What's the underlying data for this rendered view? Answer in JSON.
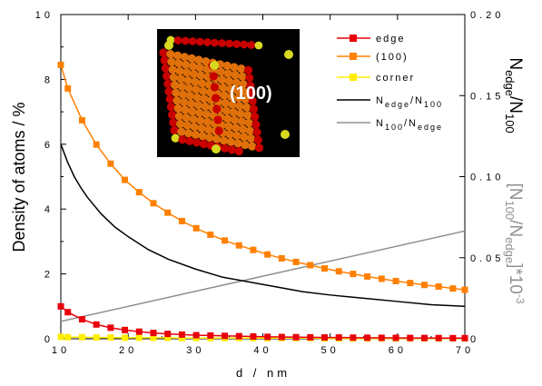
{
  "chart_data": {
    "type": "line",
    "x_axis": {
      "label": "d / nm",
      "range": [
        10,
        70
      ],
      "ticks": [
        "10",
        "20",
        "30",
        "40",
        "50",
        "60",
        "70"
      ]
    },
    "y_left": {
      "label": "Density of atoms / %",
      "range": [
        0,
        10
      ],
      "ticks": [
        "0",
        "2",
        "4",
        "6",
        "8",
        "10"
      ]
    },
    "y_right": {
      "label_main": "N",
      "label_sub1": "edge",
      "label_sep": "/N",
      "label_sub2": "100",
      "label2_main": "[N",
      "label2_sub1": "100",
      "label2_sep": "/N",
      "label2_sub2": "edge",
      "label2_end": "]*10",
      "label2_sup": "-3",
      "range": [
        0,
        0.2
      ],
      "ticks": [
        "0",
        "0.05",
        "0.10",
        "0.15",
        "0.20"
      ]
    },
    "inset": {
      "label": "(100)"
    },
    "series": [
      {
        "name": "edge",
        "axis": "left",
        "color": "#e8000b",
        "marker": "square",
        "x": [
          10,
          11.04,
          13.16,
          15.28,
          17.4,
          19.51,
          21.63,
          23.75,
          25.87,
          27.99,
          30.11,
          32.22,
          34.34,
          36.46,
          38.58,
          40.7,
          42.81,
          44.93,
          47.05,
          49.17,
          51.29,
          53.4,
          55.52,
          57.64,
          59.76,
          61.88,
          64,
          66.11,
          68.23,
          70
        ],
        "y": [
          1.0,
          0.82,
          0.6,
          0.44,
          0.34,
          0.27,
          0.22,
          0.18,
          0.15,
          0.13,
          0.11,
          0.1,
          0.09,
          0.08,
          0.07,
          0.06,
          0.055,
          0.05,
          0.045,
          0.04,
          0.04,
          0.035,
          0.032,
          0.03,
          0.028,
          0.026,
          0.024,
          0.022,
          0.02,
          0.02
        ]
      },
      {
        "name": "(100)",
        "axis": "left",
        "color": "#ff8000",
        "marker": "square",
        "x": [
          10,
          11.04,
          13.16,
          15.28,
          17.4,
          19.51,
          21.63,
          23.75,
          25.87,
          27.99,
          30.11,
          32.22,
          34.34,
          36.46,
          38.58,
          40.7,
          42.81,
          44.93,
          47.05,
          49.17,
          51.29,
          53.4,
          55.52,
          57.64,
          59.76,
          61.88,
          64,
          66.11,
          68.23,
          70
        ],
        "y": [
          8.45,
          7.72,
          6.74,
          5.99,
          5.4,
          4.9,
          4.52,
          4.18,
          3.89,
          3.63,
          3.41,
          3.21,
          3.03,
          2.88,
          2.74,
          2.6,
          2.48,
          2.37,
          2.27,
          2.17,
          2.08,
          2.0,
          1.92,
          1.85,
          1.78,
          1.72,
          1.66,
          1.61,
          1.55,
          1.51
        ]
      },
      {
        "name": "corner",
        "axis": "left",
        "color": "#ffee00",
        "marker": "square",
        "x": [
          10,
          11.04,
          13.16,
          15.28,
          17.4,
          19.51,
          21.63,
          23.75,
          25.87,
          27.99,
          30.11,
          32.22,
          34.34,
          36.46,
          38.58,
          40.7,
          42.81,
          44.93,
          47.05,
          49.17,
          51.29,
          53.4,
          55.52,
          57.64,
          59.76,
          61.88,
          64,
          66.11,
          68.23,
          70
        ],
        "y": [
          0.06,
          0.05,
          0.05,
          0.04,
          0.04,
          0.03,
          0.03,
          0.03,
          0.03,
          0.02,
          0.02,
          0.02,
          0.02,
          0.02,
          0.02,
          0.02,
          0.02,
          0.02,
          0.02,
          0.01,
          0.01,
          0.01,
          0.01,
          0.01,
          0.01,
          0.01,
          0.01,
          0.01,
          0.01,
          0.01
        ]
      },
      {
        "name_main": "N",
        "name_sub1": "edge",
        "name_sep": "/N",
        "name_sub2": "100",
        "axis": "right",
        "color": "#000000",
        "marker": "none",
        "x": [
          10,
          11,
          12,
          13,
          14,
          16,
          18,
          20,
          23,
          26,
          30,
          34,
          38,
          42,
          46,
          50,
          55,
          60,
          65,
          70
        ],
        "y": [
          0.12,
          0.109,
          0.1,
          0.093,
          0.087,
          0.077,
          0.069,
          0.063,
          0.055,
          0.049,
          0.043,
          0.038,
          0.035,
          0.032,
          0.029,
          0.027,
          0.025,
          0.023,
          0.021,
          0.02
        ]
      },
      {
        "name_main": "N",
        "name_sub1": "100",
        "name_sep": "/N",
        "name_sub2": "edge",
        "axis": "right",
        "color": "#909090",
        "marker": "none",
        "x": [
          10,
          70
        ],
        "y": [
          0.0107,
          0.0665
        ]
      }
    ]
  }
}
